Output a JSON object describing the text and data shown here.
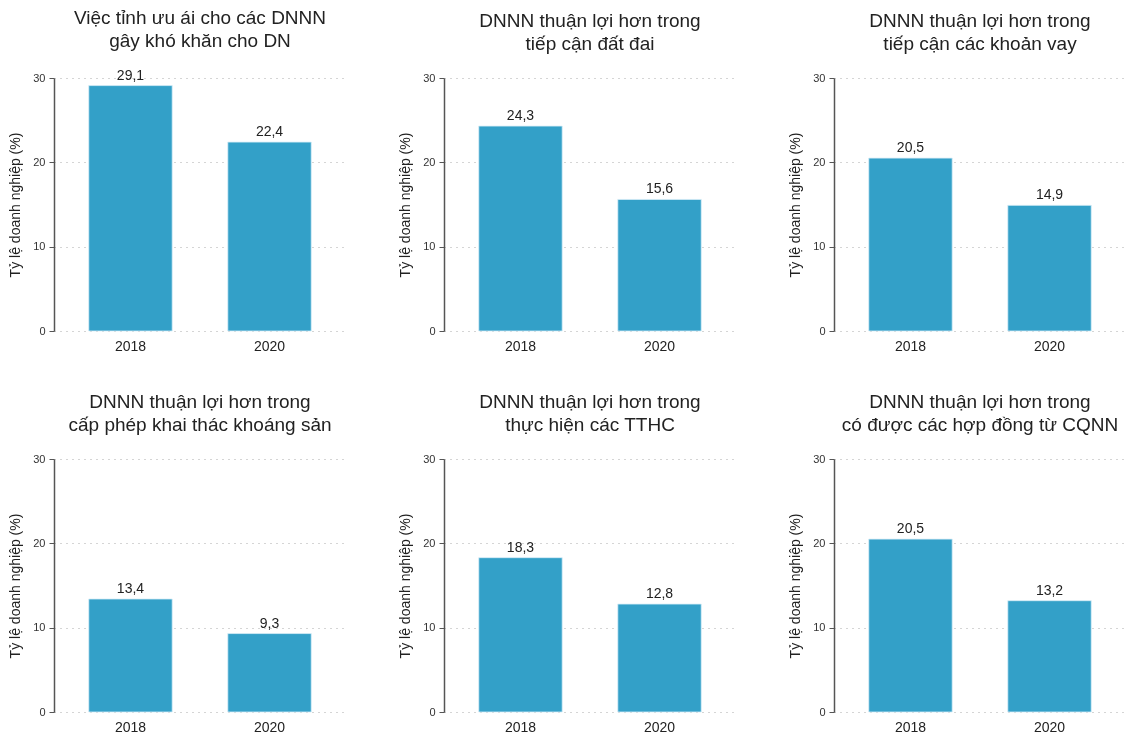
{
  "chart_data": [
    {
      "type": "bar",
      "title": "Việc tỉnh ưu ái cho các DNNN\ngây khó khăn cho DN",
      "ylabel": "Tỷ lệ doanh nghiệp (%)",
      "categories": [
        "2018",
        "2020"
      ],
      "values": [
        29.1,
        22.4
      ],
      "value_labels": [
        "29,1",
        "22,4"
      ],
      "color": "#33a0c8",
      "ylim": [
        0,
        30
      ],
      "yticks": [
        0,
        10,
        20,
        30
      ],
      "grid": "y"
    },
    {
      "type": "bar",
      "title": "DNNN thuận lợi hơn trong\ntiếp cận đất đai",
      "ylabel": "Tỷ lệ doanh nghiệp (%)",
      "categories": [
        "2018",
        "2020"
      ],
      "values": [
        24.3,
        15.6
      ],
      "value_labels": [
        "24,3",
        "15,6"
      ],
      "color": "#33a0c8",
      "ylim": [
        0,
        30
      ],
      "yticks": [
        0,
        10,
        20,
        30
      ],
      "grid": "y"
    },
    {
      "type": "bar",
      "title": "DNNN thuận lợi hơn trong\ntiếp cận các khoản vay",
      "ylabel": "Tỷ lệ doanh nghiệp (%)",
      "categories": [
        "2018",
        "2020"
      ],
      "values": [
        20.5,
        14.9
      ],
      "value_labels": [
        "20,5",
        "14,9"
      ],
      "color": "#33a0c8",
      "ylim": [
        0,
        30
      ],
      "yticks": [
        0,
        10,
        20,
        30
      ],
      "grid": "y"
    },
    {
      "type": "bar",
      "title": "DNNN thuận lợi hơn trong\ncấp phép khai thác khoáng sản",
      "ylabel": "Tỷ lệ doanh nghiệp (%)",
      "categories": [
        "2018",
        "2020"
      ],
      "values": [
        13.4,
        9.3
      ],
      "value_labels": [
        "13,4",
        "9,3"
      ],
      "color": "#33a0c8",
      "ylim": [
        0,
        30
      ],
      "yticks": [
        0,
        10,
        20,
        30
      ],
      "grid": "y"
    },
    {
      "type": "bar",
      "title": "DNNN thuận lợi hơn trong\nthực hiện các TTHC",
      "ylabel": "Tỷ lệ doanh nghiệp (%)",
      "categories": [
        "2018",
        "2020"
      ],
      "values": [
        18.3,
        12.8
      ],
      "value_labels": [
        "18,3",
        "12,8"
      ],
      "color": "#33a0c8",
      "ylim": [
        0,
        30
      ],
      "yticks": [
        0,
        10,
        20,
        30
      ],
      "grid": "y"
    },
    {
      "type": "bar",
      "title": "DNNN thuận lợi hơn trong\ncó được các hợp đồng từ CQNN",
      "ylabel": "Tỷ lệ doanh nghiệp (%)",
      "categories": [
        "2018",
        "2020"
      ],
      "values": [
        20.5,
        13.2
      ],
      "value_labels": [
        "20,5",
        "13,2"
      ],
      "color": "#33a0c8",
      "ylim": [
        0,
        30
      ],
      "yticks": [
        0,
        10,
        20,
        30
      ],
      "grid": "y"
    }
  ]
}
